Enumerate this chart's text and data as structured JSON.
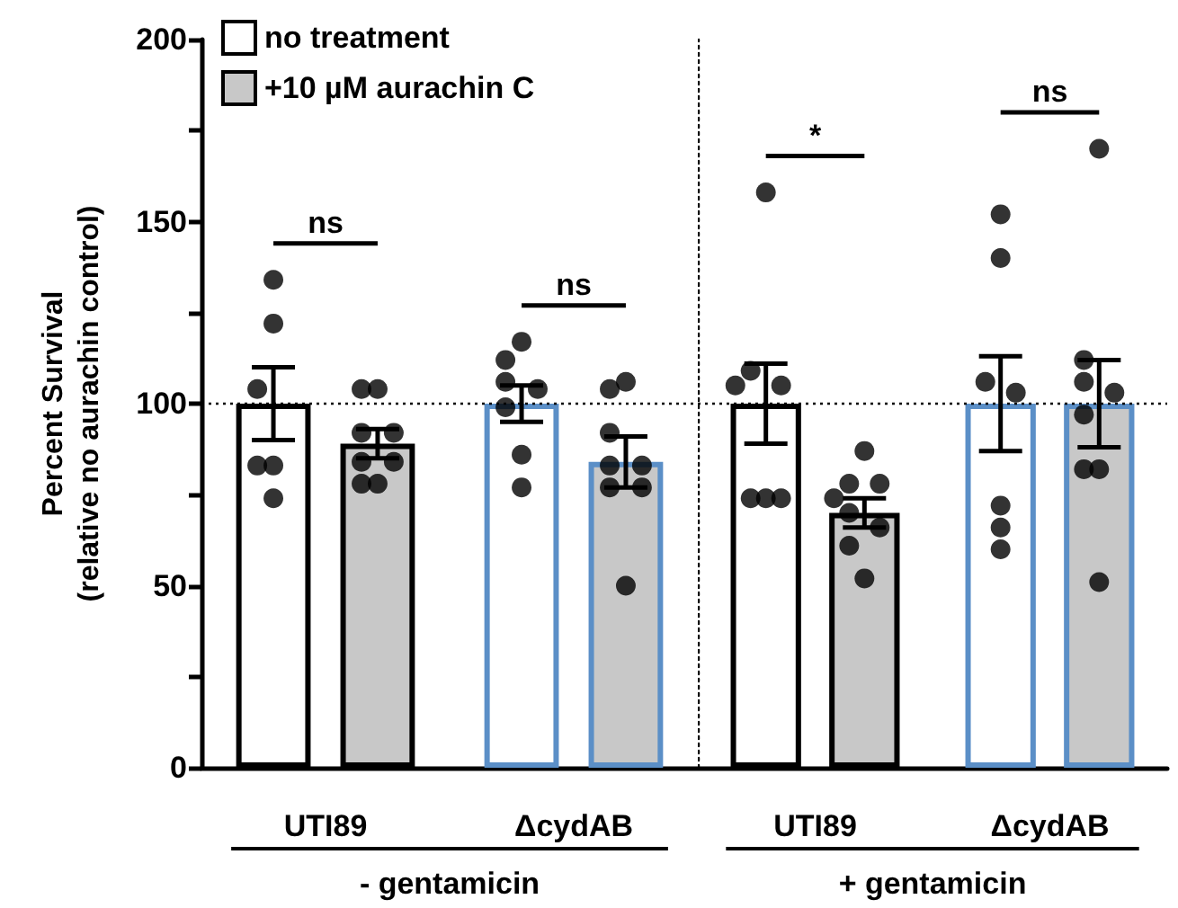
{
  "chart_data": [
    {
      "type": "bar",
      "ylabel": "Percent Survival\n(relative no aurachin control)",
      "xlabel": "- gentamicin",
      "categories": [
        "UTI89",
        "ΔcydAB"
      ],
      "series": [
        {
          "name": "no treatment",
          "color": "#ffffff",
          "values": [
            100,
            100
          ],
          "errors": [
            10,
            5
          ]
        },
        {
          "name": "+10 µM aurachin C",
          "color": "#c8c8c8",
          "values": [
            89,
            84
          ],
          "errors": [
            4,
            7
          ]
        },
        {
          "type": "scatter",
          "color": "#000000",
          "x": [
            "UTI89",
            "UTI89",
            "UTI89",
            "UTI89",
            "UTI89",
            "UTI89",
            "ΔcydAB",
            "ΔcydAB",
            "ΔcydAB",
            "ΔcydAB",
            "ΔcydAB",
            "ΔcydAB",
            "ΔcydAB"
          ],
          "values": [
            134,
            122,
            104,
            83,
            83,
            74,
            117,
            112,
            106,
            104,
            99,
            86,
            77
          ]
        },
        {
          "type": "scatter",
          "color": "#000000",
          "x": [
            "UTI89",
            "UTI89",
            "UTI89",
            "UTI89",
            "UTI89",
            "UTI89",
            "UTI89",
            "UTI89",
            "ΔcydAB",
            "ΔcydAB",
            "ΔcydAB",
            "ΔcydAB",
            "ΔcydAB",
            "ΔcydAB",
            "ΔcydAB",
            "ΔcydAB"
          ],
          "values": [
            104,
            104,
            92,
            92,
            84,
            84,
            78,
            78,
            106,
            104,
            92,
            83,
            83,
            77,
            77,
            50
          ]
        }
      ],
      "ylim": [
        0,
        200
      ],
      "yticks": [
        0,
        {
          "value": 25,
          "label": null
        },
        50,
        {
          "value": 75,
          "label": null
        },
        100,
        {
          "value": 125,
          "label": null
        },
        150,
        {
          "value": 175,
          "label": null
        },
        200
      ],
      "ref_lines": [
        {
          "axis": "y",
          "value": 100,
          "line_style": "dotted",
          "color": "#000000"
        }
      ],
      "annotations": [
        "ns",
        "ns"
      ],
      "legend": "top left",
      "marker": "circle",
      "grid": false
    },
    {
      "type": "bar",
      "xlabel": "+ gentamicin",
      "categories": [
        "UTI89",
        "ΔcydAB"
      ],
      "series": [
        {
          "color": "#ffffff",
          "values": [
            100,
            100
          ],
          "errors": [
            11,
            13
          ]
        },
        {
          "color": "#c8c8c8",
          "values": [
            70,
            100
          ],
          "errors": [
            4,
            12
          ]
        },
        {
          "type": "scatter",
          "color": "#000000",
          "x": [
            "UTI89",
            "UTI89",
            "UTI89",
            "UTI89",
            "UTI89",
            "UTI89",
            "UTI89",
            "ΔcydAB",
            "ΔcydAB",
            "ΔcydAB",
            "ΔcydAB",
            "ΔcydAB",
            "ΔcydAB",
            "ΔcydAB"
          ],
          "values": [
            158,
            109,
            105,
            105,
            74,
            74,
            74,
            152,
            140,
            106,
            103,
            72,
            66,
            60
          ]
        },
        {
          "type": "scatter",
          "color": "#000000",
          "x": [
            "UTI89",
            "UTI89",
            "UTI89",
            "UTI89",
            "UTI89",
            "UTI89",
            "UTI89",
            "UTI89",
            "ΔcydAB",
            "ΔcydAB",
            "ΔcydAB",
            "ΔcydAB",
            "ΔcydAB",
            "ΔcydAB",
            "ΔcydAB",
            "ΔcydAB"
          ],
          "values": [
            87,
            78,
            78,
            74,
            70,
            66,
            61,
            52,
            170,
            112,
            106,
            103,
            97,
            82,
            82,
            51
          ]
        }
      ],
      "ylim": [
        0,
        200
      ],
      "tick_labels": "x",
      "ref_lines": [
        {
          "axis": "y",
          "value": 100,
          "line_style": "dotted",
          "color": "#000000"
        }
      ],
      "annotations": [
        "*",
        "ns"
      ],
      "marker": "circle",
      "grid": false
    }
  ]
}
